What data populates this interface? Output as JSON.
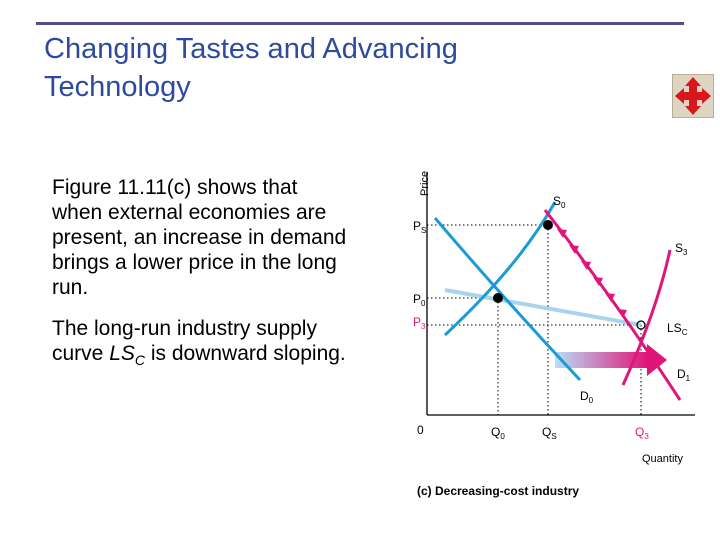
{
  "slide": {
    "title_line1": "Changing Tastes and Advancing",
    "title_line2": "Technology",
    "para1": "Figure 11.11(c) shows that when external economies are present, an increase in demand brings a lower price in the long run.",
    "para2_pre": "The long-run industry supply curve ",
    "para2_curve": "LS",
    "para2_sub": "C",
    "para2_post": " is downward sloping.",
    "nav_icon": "four-way-arrows-icon"
  },
  "figure": {
    "y_axis_label": "Price",
    "x_axis_label": "Quantity",
    "origin_label": "0",
    "caption": "(c) Decreasing-cost industry",
    "price_labels": {
      "ps": {
        "main": "P",
        "sub": "S"
      },
      "p0": {
        "main": "P",
        "sub": "0"
      },
      "p3": {
        "main": "P",
        "sub": "3"
      }
    },
    "quantity_labels": {
      "q0": {
        "main": "Q",
        "sub": "0"
      },
      "qs": {
        "main": "Q",
        "sub": "S"
      },
      "q3": {
        "main": "Q",
        "sub": "3"
      }
    },
    "curve_labels": {
      "s0": {
        "main": "S",
        "sub": "0"
      },
      "s3": {
        "main": "S",
        "sub": "3"
      },
      "lsc": {
        "main": "LS",
        "sub": "C"
      },
      "d0": {
        "main": "D",
        "sub": "0"
      },
      "d1": {
        "main": "D",
        "sub": "1"
      }
    },
    "colors": {
      "supply": "#1a9ad6",
      "demand": "#1a9ad6",
      "long_run_supply": "#a8d4ee",
      "new_supply": "#e0157a",
      "shift_arrow_start": "#b7e0f4",
      "shift_arrow_end": "#e0157a",
      "guides": "#000000",
      "p3_label": "#e0157a",
      "q3_label": "#e0157a"
    }
  }
}
